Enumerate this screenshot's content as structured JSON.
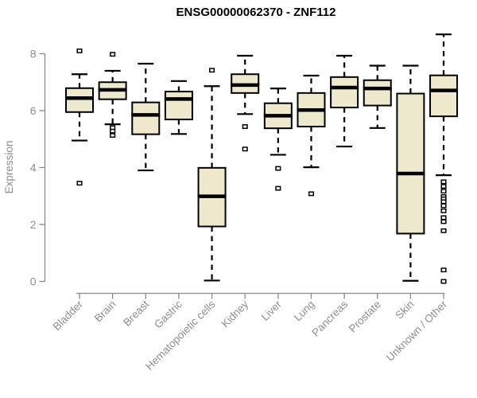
{
  "chart_data": {
    "type": "boxplot",
    "title": "ENSG00000062370 - ZNF112",
    "xlabel": "",
    "ylabel": "Expression",
    "ylim": [
      0,
      8.8
    ],
    "yticks": [
      0,
      2,
      4,
      6,
      8
    ],
    "grid": false,
    "legend": "none",
    "xtick_rotation_deg": 45,
    "box_fill": "#EEE8CD",
    "box_stroke": "#000000",
    "median_color": "#000000",
    "whisker_color": "#000000",
    "outlier_fill": "#ffffff",
    "axis_color": "#8a8a8a",
    "label_color": "#8e8e8e",
    "title_color": "#000000",
    "categories": [
      "Bladder",
      "Brain",
      "Breast",
      "Gastric",
      "Hematopoietic cells",
      "Kidney",
      "Liver",
      "Lung",
      "Pancreas",
      "Prostate",
      "Skin",
      "Unknown / Other"
    ],
    "series": [
      {
        "name": "Bladder",
        "whisker_low": 4.95,
        "q1": 5.95,
        "median": 6.44,
        "q3": 6.79,
        "whisker_high": 7.28,
        "outliers": [
          8.1,
          3.45
        ]
      },
      {
        "name": "Brain",
        "whisker_low": 5.52,
        "q1": 6.4,
        "median": 6.73,
        "q3": 7.0,
        "whisker_high": 7.4,
        "outliers": [
          7.98,
          5.4,
          5.28,
          5.13
        ]
      },
      {
        "name": "Breast",
        "whisker_low": 3.9,
        "q1": 5.17,
        "median": 5.85,
        "q3": 6.29,
        "whisker_high": 7.65,
        "outliers": []
      },
      {
        "name": "Gastric",
        "whisker_low": 5.18,
        "q1": 5.69,
        "median": 6.41,
        "q3": 6.67,
        "whisker_high": 7.04,
        "outliers": []
      },
      {
        "name": "Hematopoietic cells",
        "whisker_low": 0.03,
        "q1": 1.93,
        "median": 2.99,
        "q3": 3.99,
        "whisker_high": 6.86,
        "outliers": [
          7.42
        ]
      },
      {
        "name": "Kidney",
        "whisker_low": 5.88,
        "q1": 6.62,
        "median": 6.9,
        "q3": 7.28,
        "whisker_high": 7.93,
        "outliers": [
          5.44,
          4.65
        ]
      },
      {
        "name": "Liver",
        "whisker_low": 4.45,
        "q1": 5.38,
        "median": 5.82,
        "q3": 6.26,
        "whisker_high": 6.78,
        "outliers": [
          3.97,
          3.27
        ]
      },
      {
        "name": "Lung",
        "whisker_low": 4.01,
        "q1": 5.44,
        "median": 6.02,
        "q3": 6.62,
        "whisker_high": 7.23,
        "outliers": [
          3.08
        ]
      },
      {
        "name": "Pancreas",
        "whisker_low": 4.74,
        "q1": 6.11,
        "median": 6.81,
        "q3": 7.18,
        "whisker_high": 7.93,
        "outliers": []
      },
      {
        "name": "Prostate",
        "whisker_low": 5.39,
        "q1": 6.18,
        "median": 6.78,
        "q3": 7.07,
        "whisker_high": 7.58,
        "outliers": []
      },
      {
        "name": "Skin",
        "whisker_low": 0.02,
        "q1": 1.68,
        "median": 3.79,
        "q3": 6.6,
        "whisker_high": 7.58,
        "outliers": []
      },
      {
        "name": "Unknown / Other",
        "whisker_low": 3.73,
        "q1": 5.8,
        "median": 6.71,
        "q3": 7.24,
        "whisker_high": 8.68,
        "outliers": [
          3.5,
          3.34,
          3.17,
          2.98,
          2.9,
          2.8,
          2.66,
          2.48,
          2.24,
          2.1,
          1.78,
          0.4,
          0.0
        ]
      }
    ]
  }
}
